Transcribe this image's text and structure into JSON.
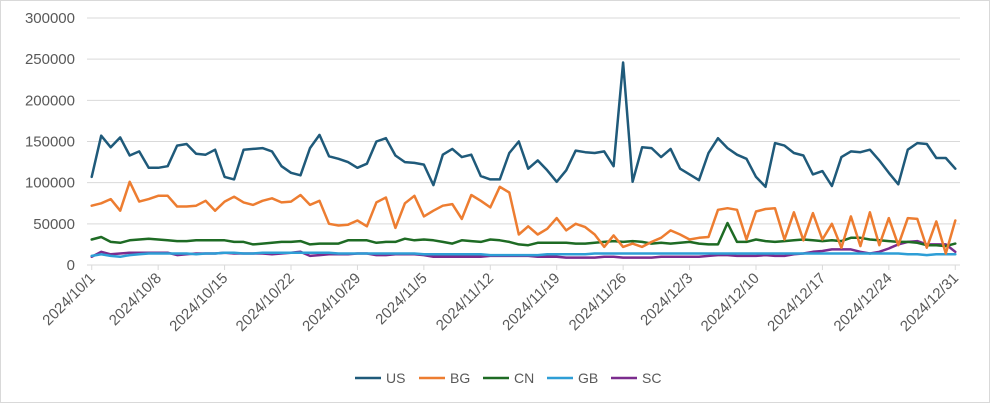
{
  "chart_data": {
    "type": "line",
    "title": "",
    "xlabel": "",
    "ylabel": "",
    "ylim": [
      0,
      300000
    ],
    "yticks": [
      "0",
      "50000",
      "100000",
      "150000",
      "200000",
      "250000",
      "300000"
    ],
    "grid": "horizontal",
    "legend": "bottom",
    "x_start": "2024/10/1",
    "x_end": "2024/12/31",
    "x_tick_labels": [
      "2024/10/1",
      "2024/10/8",
      "2024/10/15",
      "2024/10/22",
      "2024/10/29",
      "2024/11/5",
      "2024/11/12",
      "2024/11/19",
      "2024/11/26",
      "2024/12/3",
      "2024/12/10",
      "2024/12/17",
      "2024/12/24",
      "2024/12/31"
    ],
    "series": [
      {
        "name": "US",
        "color": "#1f5a7a",
        "values": [
          107000,
          157000,
          143000,
          155000,
          133000,
          138000,
          118000,
          118000,
          120000,
          145000,
          147000,
          135000,
          134000,
          140000,
          107000,
          104000,
          140000,
          141000,
          142000,
          138000,
          120000,
          112000,
          109000,
          142000,
          158000,
          132000,
          129000,
          125000,
          118000,
          123000,
          150000,
          154000,
          133000,
          125000,
          124000,
          122000,
          97000,
          134000,
          141000,
          131000,
          134000,
          108000,
          104000,
          104000,
          136000,
          150000,
          117000,
          127000,
          115000,
          101000,
          115000,
          139000,
          137000,
          136000,
          138000,
          120000,
          246000,
          101000,
          143000,
          142000,
          131000,
          141000,
          117000,
          110000,
          103000,
          136000,
          154000,
          142000,
          134000,
          129000,
          107000,
          95000,
          148000,
          145000,
          136000,
          133000,
          110000,
          114000,
          96000,
          131000,
          138000,
          137000,
          140000,
          127000,
          112000,
          98000,
          140000,
          148000,
          147000,
          130000,
          130000,
          117000
        ]
      },
      {
        "name": "BG",
        "color": "#ed7d31",
        "values": [
          72000,
          75000,
          80000,
          66000,
          101000,
          77000,
          80000,
          84000,
          84000,
          71000,
          71000,
          72000,
          78000,
          66000,
          77000,
          83000,
          76000,
          73000,
          78000,
          81000,
          76000,
          77000,
          85000,
          73000,
          78000,
          50000,
          48000,
          49000,
          54000,
          47000,
          76000,
          82000,
          45000,
          75000,
          84000,
          59000,
          66000,
          72000,
          74000,
          56000,
          85000,
          78000,
          70000,
          95000,
          88000,
          37000,
          47000,
          37000,
          44000,
          57000,
          42000,
          50000,
          46000,
          37000,
          22000,
          36000,
          22000,
          26000,
          22000,
          28000,
          33000,
          42000,
          37000,
          31000,
          33000,
          34000,
          67000,
          69000,
          67000,
          31000,
          65000,
          68000,
          69000,
          31000,
          64000,
          30000,
          63000,
          31000,
          50000,
          21000,
          59000,
          23000,
          64000,
          24000,
          57000,
          24000,
          57000,
          56000,
          21000,
          53000,
          14000,
          54000
        ]
      },
      {
        "name": "CN",
        "color": "#1e6b24",
        "values": [
          31000,
          34000,
          28000,
          27000,
          30000,
          31000,
          32000,
          31000,
          30000,
          29000,
          29000,
          30000,
          30000,
          30000,
          30000,
          28000,
          28000,
          25000,
          26000,
          27000,
          28000,
          28000,
          29000,
          25000,
          26000,
          26000,
          26000,
          30000,
          30000,
          30000,
          27000,
          28000,
          28000,
          32000,
          30000,
          31000,
          30000,
          28000,
          26000,
          30000,
          29000,
          28000,
          31000,
          30000,
          28000,
          25000,
          24000,
          27000,
          27000,
          27000,
          27000,
          26000,
          26000,
          27000,
          28000,
          29000,
          28000,
          29000,
          28000,
          26000,
          27000,
          26000,
          27000,
          28000,
          26000,
          25000,
          25000,
          51000,
          28000,
          28000,
          31000,
          29000,
          28000,
          29000,
          30000,
          31000,
          30000,
          29000,
          30000,
          29000,
          33000,
          33000,
          31000,
          30000,
          29000,
          28000,
          28000,
          27000,
          24000,
          24000,
          23000,
          26000
        ]
      },
      {
        "name": "GB",
        "color": "#2e9ed6",
        "values": [
          11000,
          13000,
          11000,
          10000,
          12000,
          13000,
          14000,
          14000,
          14000,
          14000,
          14000,
          13000,
          14000,
          14000,
          15000,
          15000,
          14000,
          14000,
          15000,
          15000,
          15000,
          15000,
          15000,
          15000,
          15000,
          15000,
          14000,
          14000,
          14000,
          14000,
          14000,
          14000,
          14000,
          14000,
          14000,
          13000,
          13000,
          13000,
          13000,
          13000,
          13000,
          13000,
          12000,
          12000,
          12000,
          12000,
          12000,
          12000,
          13000,
          13000,
          13000,
          13000,
          13000,
          14000,
          14000,
          14000,
          14000,
          14000,
          14000,
          14000,
          14000,
          14000,
          14000,
          14000,
          14000,
          14000,
          14000,
          14000,
          14000,
          14000,
          14000,
          14000,
          14000,
          14000,
          14000,
          14000,
          14000,
          14000,
          14000,
          14000,
          14000,
          14000,
          14000,
          14000,
          14000,
          14000,
          13000,
          13000,
          12000,
          13000,
          13000,
          13000
        ]
      },
      {
        "name": "SC",
        "color": "#7b2c8e",
        "values": [
          10000,
          16000,
          13000,
          14000,
          15000,
          15000,
          15000,
          15000,
          15000,
          12000,
          13000,
          14000,
          14000,
          14000,
          15000,
          14000,
          14000,
          14000,
          14000,
          13000,
          14000,
          15000,
          16000,
          11000,
          12000,
          13000,
          13000,
          13000,
          14000,
          14000,
          12000,
          12000,
          13000,
          13000,
          13000,
          12000,
          10000,
          10000,
          10000,
          10000,
          10000,
          10000,
          11000,
          11000,
          11000,
          11000,
          11000,
          10000,
          10000,
          10000,
          9000,
          9000,
          9000,
          9000,
          10000,
          10000,
          9000,
          9000,
          9000,
          9000,
          10000,
          10000,
          10000,
          10000,
          10000,
          11000,
          12000,
          12000,
          11000,
          11000,
          11000,
          12000,
          11000,
          11000,
          13000,
          14000,
          16000,
          17000,
          19000,
          19000,
          19000,
          16000,
          14000,
          16000,
          20000,
          25000,
          28000,
          29000,
          25000,
          25000,
          25000,
          16000
        ]
      }
    ]
  }
}
